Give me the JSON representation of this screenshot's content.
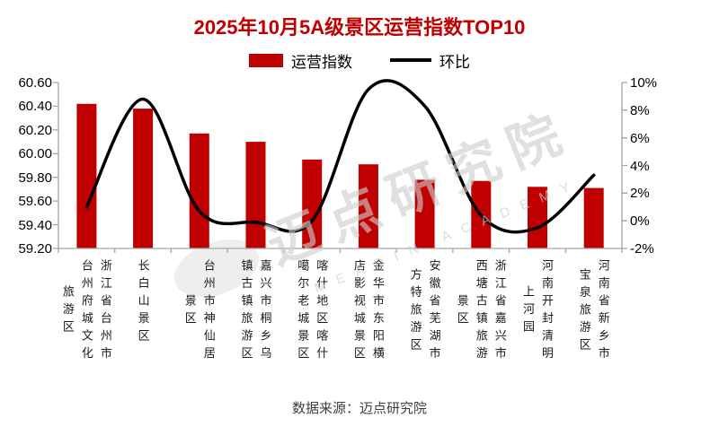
{
  "title": "2025年10月5A级景区运营指数TOP10",
  "legend": {
    "bar_label": "运营指数",
    "line_label": "环比"
  },
  "watermark": {
    "main": "迈点研究院",
    "sub": "MEADIN ACADEMY"
  },
  "footer": {
    "source": "数据来源：迈点研究院"
  },
  "colors": {
    "bar": "#C00000",
    "line": "#000000",
    "title": "#C00000",
    "axis": "#A6A6A6"
  },
  "chart_data": {
    "type": "bar",
    "title": "2025年10月5A级景区运营指数TOP10",
    "legend_position": "top",
    "grid": false,
    "categories": [
      "浙江省台州市台州府城文化旅游区",
      "长白山景区",
      "台州市神仙居景区",
      "嘉兴市桐乡乌镇古镇旅游区",
      "喀什地区喀什噶尔老城景区",
      "金华市东阳横店影视城景区",
      "安徽省芜湖市方特旅游区",
      "浙江省嘉兴市西塘古镇旅游景区",
      "河南开封清明上河园",
      "河南省新乡市宝泉旅游区"
    ],
    "series": [
      {
        "name": "运营指数",
        "type": "bar",
        "axis": "left",
        "color": "#C00000",
        "values": [
          60.42,
          60.38,
          60.17,
          60.1,
          59.95,
          59.91,
          59.78,
          59.77,
          59.72,
          59.71
        ]
      },
      {
        "name": "环比",
        "type": "line",
        "axis": "right",
        "unit": "%",
        "color": "#000000",
        "smooth": true,
        "values": [
          1.0,
          8.8,
          0.7,
          -0.1,
          0.0,
          9.5,
          8.3,
          0.4,
          -0.5,
          3.3
        ]
      }
    ],
    "left_axis": {
      "min": 59.2,
      "max": 60.6,
      "step": 0.2,
      "ticks": [
        "60.60",
        "60.40",
        "60.20",
        "60.00",
        "59.80",
        "59.60",
        "59.40",
        "59.20"
      ]
    },
    "right_axis": {
      "min": -2,
      "max": 10,
      "step": 2,
      "ticks": [
        "10%",
        "8%",
        "6%",
        "4%",
        "2%",
        "0%",
        "-2%"
      ]
    }
  }
}
